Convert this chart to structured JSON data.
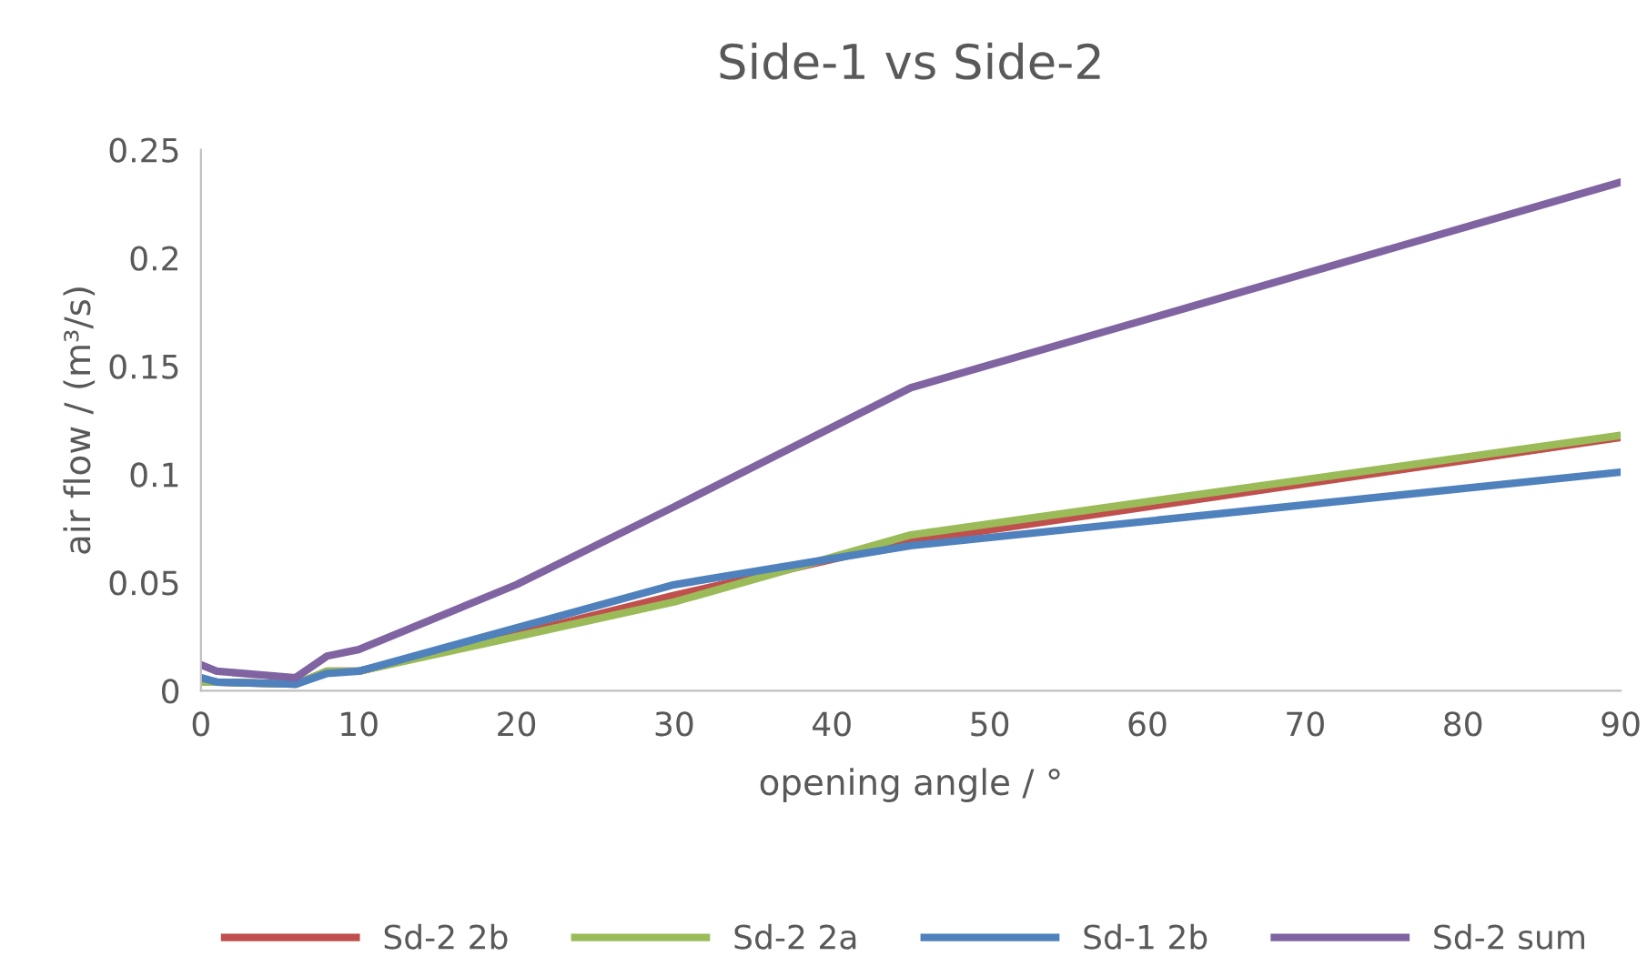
{
  "chart_data": {
    "type": "line",
    "title": "Side-1 vs Side-2",
    "xlabel": "opening angle / °",
    "ylabel": "air flow / (m³/s)",
    "x": [
      0,
      1,
      6,
      8,
      10,
      20,
      30,
      45,
      90
    ],
    "series": [
      {
        "name": "Sd-2 2b",
        "color": "#c0504d",
        "values": [
          0.005,
          0.004,
          0.003,
          0.009,
          0.009,
          0.026,
          0.044,
          0.069,
          0.117
        ]
      },
      {
        "name": "Sd-2 2a",
        "color": "#9bbb59",
        "values": [
          0.004,
          0.004,
          0.003,
          0.009,
          0.009,
          0.025,
          0.041,
          0.072,
          0.118
        ]
      },
      {
        "name": "Sd-1 2b",
        "color": "#4f81bd",
        "values": [
          0.006,
          0.004,
          0.003,
          0.008,
          0.009,
          0.029,
          0.049,
          0.067,
          0.101
        ]
      },
      {
        "name": "Sd-2 sum",
        "color": "#8064a2",
        "values": [
          0.012,
          0.009,
          0.006,
          0.016,
          0.019,
          0.049,
          0.085,
          0.14,
          0.235
        ]
      }
    ],
    "xlim": [
      0,
      90
    ],
    "xticks": [
      0,
      10,
      20,
      30,
      40,
      50,
      60,
      70,
      80,
      90
    ],
    "ylim": [
      0,
      0.25
    ],
    "yticks": [
      0,
      0.05,
      0.1,
      0.15,
      0.2,
      0.25
    ],
    "grid": false,
    "legend": "bottom",
    "marker": "none",
    "line_style": "solid"
  }
}
